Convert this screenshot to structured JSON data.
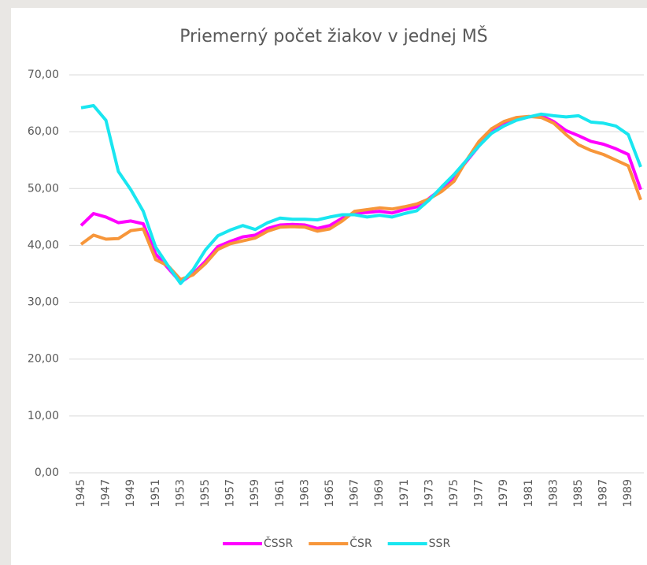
{
  "chart_data": {
    "type": "line",
    "title": "Priemerný počet žiakov v jednej MŠ",
    "categories": [
      "1945",
      null,
      "1947",
      null,
      "1949",
      null,
      "1951",
      null,
      "1953",
      null,
      "1955",
      null,
      "1957",
      null,
      "1959",
      null,
      "1961",
      null,
      "1963",
      null,
      "1965",
      null,
      "1967",
      null,
      "1969",
      null,
      "1971",
      null,
      "1973",
      null,
      "1975",
      null,
      "1977",
      null,
      "1979",
      null,
      "1981",
      null,
      "1983",
      null,
      "1985",
      null,
      "1987",
      null,
      "1989",
      null
    ],
    "series": [
      {
        "name": "ČSSR",
        "color": "#ff00ff",
        "values": [
          43.5,
          45.6,
          45.0,
          44.0,
          44.3,
          43.8,
          38.5,
          36.0,
          33.5,
          35.0,
          37.2,
          39.8,
          40.7,
          41.5,
          41.8,
          43.0,
          43.6,
          43.7,
          43.6,
          43.0,
          43.5,
          44.8,
          45.7,
          45.8,
          46.0,
          45.7,
          46.3,
          46.8,
          48.3,
          50.0,
          52.0,
          54.8,
          57.5,
          60.0,
          61.5,
          62.3,
          62.6,
          62.8,
          61.8,
          60.2,
          59.3,
          58.3,
          57.8,
          57.0,
          56.0,
          49.8
        ]
      },
      {
        "name": "ČSR",
        "color": "#f7963a",
        "values": [
          40.2,
          41.8,
          41.1,
          41.2,
          42.6,
          42.9,
          37.5,
          36.4,
          34.0,
          34.8,
          36.8,
          39.3,
          40.3,
          40.8,
          41.3,
          42.5,
          43.2,
          43.3,
          43.2,
          42.5,
          42.9,
          44.3,
          46.0,
          46.3,
          46.6,
          46.4,
          46.8,
          47.3,
          48.2,
          49.5,
          51.3,
          55.0,
          58.3,
          60.5,
          61.8,
          62.5,
          62.7,
          62.5,
          61.5,
          59.5,
          57.7,
          56.7,
          56.0,
          55.0,
          54.0,
          48.0
        ]
      },
      {
        "name": "SSR",
        "color": "#19e6f0",
        "values": [
          64.2,
          64.6,
          62.0,
          53.0,
          49.8,
          46.0,
          39.7,
          36.4,
          33.3,
          35.7,
          39.2,
          41.7,
          42.7,
          43.5,
          42.8,
          44.0,
          44.8,
          44.6,
          44.6,
          44.5,
          45.0,
          45.4,
          45.4,
          45.0,
          45.3,
          45.0,
          45.6,
          46.1,
          48.0,
          50.3,
          52.5,
          55.0,
          57.5,
          59.7,
          61.0,
          62.0,
          62.6,
          63.1,
          62.8,
          62.6,
          62.8,
          61.7,
          61.5,
          61.0,
          59.5,
          53.8
        ]
      }
    ],
    "ylim": [
      0,
      70
    ],
    "yticks": [
      {
        "value": 0,
        "label": "0,00"
      },
      {
        "value": 10,
        "label": "10,00"
      },
      {
        "value": 20,
        "label": "20,00"
      },
      {
        "value": 30,
        "label": "30,00"
      },
      {
        "value": 40,
        "label": "40,00"
      },
      {
        "value": 50,
        "label": "50,00"
      },
      {
        "value": 60,
        "label": "60,00"
      },
      {
        "value": 70,
        "label": "70,00"
      }
    ],
    "grid": true,
    "legend": "bottom"
  }
}
